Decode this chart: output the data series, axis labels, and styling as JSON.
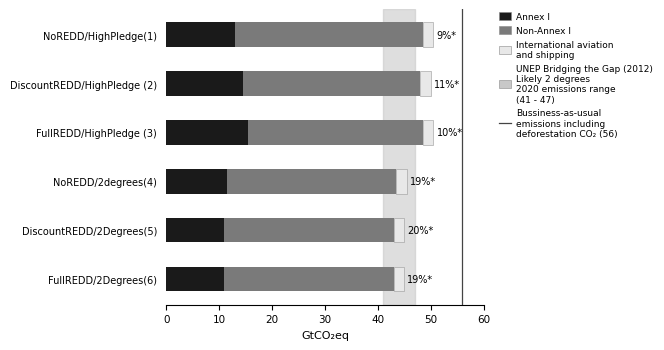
{
  "categories": [
    "NoREDD/HighPledge(1)",
    "DiscountREDD/HighPledge (2)",
    "FullREDD/HighPledge (3)",
    "NoREDD/2degrees(4)",
    "DiscountREDD/2Degrees(5)",
    "FullREDD/2Degrees(6)"
  ],
  "annex_i": [
    13.0,
    14.5,
    15.5,
    11.5,
    11.0,
    11.0
  ],
  "non_annex_i": [
    35.5,
    33.5,
    33.0,
    32.0,
    32.0,
    32.0
  ],
  "intl_aviation": [
    2.0,
    2.0,
    2.0,
    2.0,
    2.0,
    2.0
  ],
  "unep_range_low": 41,
  "unep_range_high": 47,
  "bau_line": 56,
  "percentage_labels": [
    "9%*",
    "11%*",
    "10%*",
    "19%*",
    "20%*",
    "19%*"
  ],
  "color_annex_i": "#1a1a1a",
  "color_non_annex_i": "#7a7a7a",
  "color_intl_aviation": "#e8e8e8",
  "color_unep": "#c8c8c8",
  "xlabel": "GtCO₂eq",
  "xlim": [
    0,
    60
  ],
  "xticks": [
    0,
    10,
    20,
    30,
    40,
    50,
    60
  ],
  "legend_labels": [
    "Annex I",
    "Non-Annex I",
    "International aviation\nand shipping",
    "UNEP Bridging the Gap (2012)\nLikely 2 degrees\n2020 emissions range\n(41 - 47)",
    "Bussiness-as-usual\nemissions including\ndeforestation CO₂ (56)"
  ],
  "fig_width": 6.35,
  "fig_height": 3.52,
  "bar_height": 0.5
}
